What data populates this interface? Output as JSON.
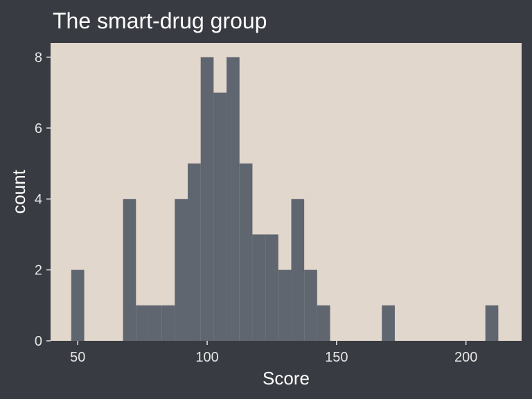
{
  "chart_data": {
    "type": "bar",
    "title": "The smart-drug group",
    "xlabel": "Score",
    "ylabel": "count",
    "xlim": [
      39.5,
      221.5
    ],
    "ylim": [
      0,
      8.4
    ],
    "x_ticks": [
      50,
      100,
      150,
      200
    ],
    "y_ticks": [
      0,
      2,
      4,
      6,
      8
    ],
    "bin_width": 5,
    "bins": [
      {
        "x0": 47.5,
        "x1": 52.5,
        "count": 2
      },
      {
        "x0": 67.5,
        "x1": 72.5,
        "count": 4
      },
      {
        "x0": 72.5,
        "x1": 77.5,
        "count": 1
      },
      {
        "x0": 77.5,
        "x1": 82.5,
        "count": 1
      },
      {
        "x0": 82.5,
        "x1": 87.5,
        "count": 1
      },
      {
        "x0": 87.5,
        "x1": 92.5,
        "count": 4
      },
      {
        "x0": 92.5,
        "x1": 97.5,
        "count": 5
      },
      {
        "x0": 97.5,
        "x1": 102.5,
        "count": 8
      },
      {
        "x0": 102.5,
        "x1": 107.5,
        "count": 7
      },
      {
        "x0": 107.5,
        "x1": 112.5,
        "count": 8
      },
      {
        "x0": 112.5,
        "x1": 117.5,
        "count": 5
      },
      {
        "x0": 117.5,
        "x1": 122.5,
        "count": 3
      },
      {
        "x0": 122.5,
        "x1": 127.5,
        "count": 3
      },
      {
        "x0": 127.5,
        "x1": 132.5,
        "count": 2
      },
      {
        "x0": 132.5,
        "x1": 137.5,
        "count": 4
      },
      {
        "x0": 137.5,
        "x1": 142.5,
        "count": 2
      },
      {
        "x0": 142.5,
        "x1": 147.5,
        "count": 1
      },
      {
        "x0": 167.5,
        "x1": 172.5,
        "count": 1
      },
      {
        "x0": 207.5,
        "x1": 212.5,
        "count": 1
      }
    ],
    "grid": false,
    "colors": {
      "background": "#383b41",
      "panel": "#e2d7cc",
      "bar": "#5f6670",
      "text": "#ffffff",
      "ticks": "#e6e6e6"
    }
  }
}
